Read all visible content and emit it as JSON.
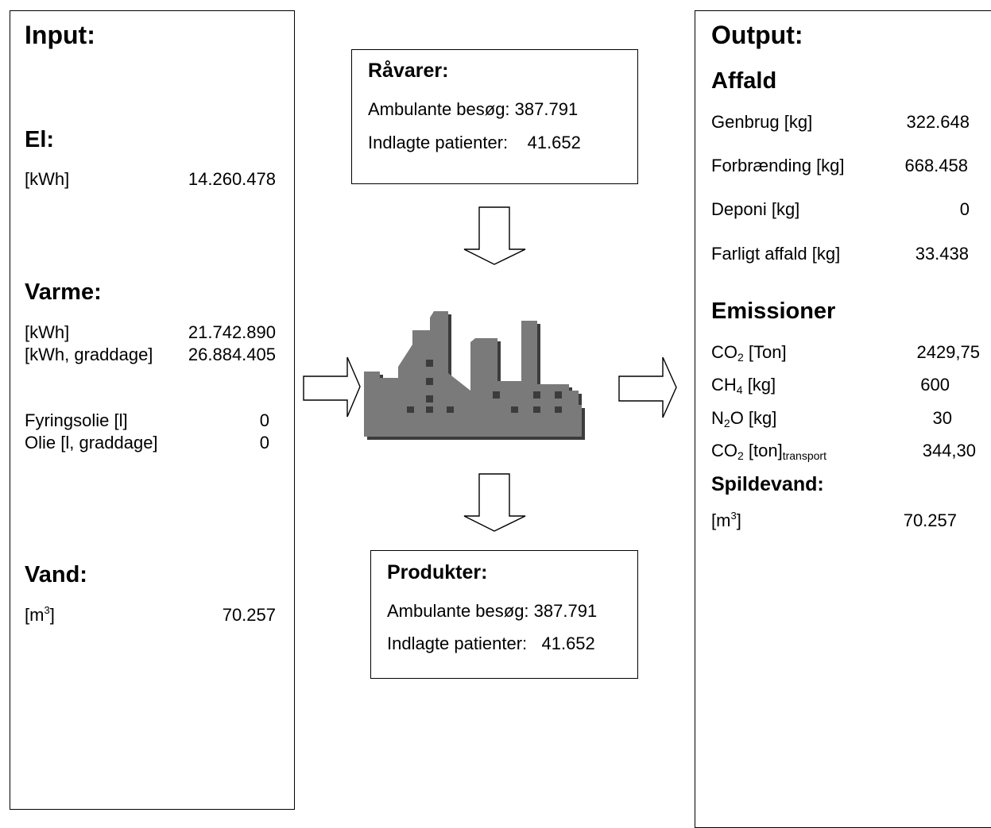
{
  "input": {
    "title": "Input:",
    "el": {
      "heading": "El:",
      "unit": "[kWh]",
      "value": "14.260.478"
    },
    "varme": {
      "heading": "Varme:",
      "rows": [
        {
          "label": "[kWh]",
          "value": "21.742.890"
        },
        {
          "label": "[kWh, graddage]",
          "value": "26.884.405"
        },
        {
          "label": "Fyringsolie [l]",
          "value": "0"
        },
        {
          "label": "Olie [l, graddage]",
          "value": "0"
        }
      ]
    },
    "vand": {
      "heading": "Vand:",
      "unit_base": "[m",
      "unit_sup": "3",
      "unit_close": "]",
      "value": "70.257"
    }
  },
  "raavarer": {
    "title": "Råvarer:",
    "ambulant_label": "Ambulante besøg:",
    "ambulant_value": "387.791",
    "indlagte_label": "Indlagte patienter:",
    "indlagte_value": "41.652"
  },
  "produkter": {
    "title": "Produkter:",
    "ambulant_label": "Ambulante besøg:",
    "ambulant_value": "387.791",
    "indlagte_label": "Indlagte patienter:",
    "indlagte_value": "41.652"
  },
  "output": {
    "title": "Output:",
    "affald": {
      "heading": "Affald",
      "rows": [
        {
          "label": "Genbrug [kg]",
          "value": "322.648"
        },
        {
          "label": "Forbrænding [kg]",
          "value": "668.458"
        },
        {
          "label": "Deponi [kg]",
          "value": "0"
        },
        {
          "label": "Farligt affald [kg]",
          "value": "33.438"
        }
      ]
    },
    "emissioner": {
      "heading": "Emissioner",
      "co2": {
        "base": "CO",
        "sub": "2",
        "unit": " [Ton]",
        "value": "2429,75"
      },
      "ch4": {
        "base": "CH",
        "sub": "4",
        "unit": " [kg]",
        "value": "600"
      },
      "n2o": {
        "base": "N",
        "sub": "2",
        "unit": "O [kg]",
        "value": "30"
      },
      "co2_transport": {
        "base": "CO",
        "sub": "2",
        "unit": " [ton]",
        "sub2": "transport",
        "value": "344,30"
      }
    },
    "spildevand": {
      "heading": "Spildevand:",
      "unit_base": "[m",
      "unit_sup": "3",
      "unit_close": "]",
      "value": "70.257"
    }
  },
  "factory": {
    "icon": "factory-icon",
    "color": "#7a7a7a"
  }
}
